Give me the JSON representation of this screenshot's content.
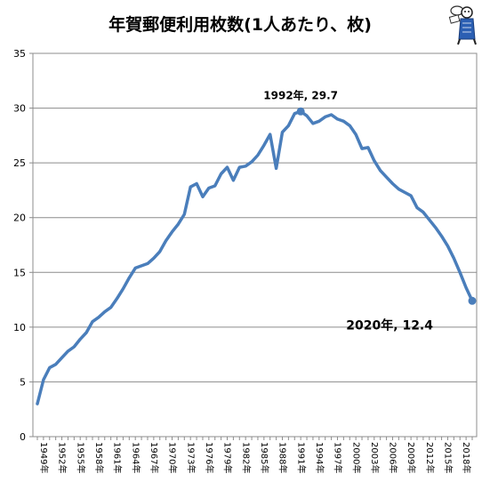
{
  "chart_data": {
    "type": "line",
    "title": "年賀郵便利用枚数(1人あたり、枚)",
    "xlabel": "",
    "ylabel": "",
    "ylim": [
      0,
      35
    ],
    "yticks": [
      0,
      5,
      10,
      15,
      20,
      25,
      30,
      35
    ],
    "grid": true,
    "legend": "none",
    "series_color": "#4a7ebb",
    "x_tick_labels": [
      "1949年",
      "1952年",
      "1955年",
      "1958年",
      "1961年",
      "1964年",
      "1967年",
      "1970年",
      "1973年",
      "1976年",
      "1979年",
      "1982年",
      "1985年",
      "1988年",
      "1991年",
      "1994年",
      "1997年",
      "2000年",
      "2003年",
      "2006年",
      "2009年",
      "2012年",
      "2015年",
      "2018年"
    ],
    "x": [
      1949,
      1950,
      1951,
      1952,
      1953,
      1954,
      1955,
      1956,
      1957,
      1958,
      1959,
      1960,
      1961,
      1962,
      1963,
      1964,
      1965,
      1966,
      1967,
      1968,
      1969,
      1970,
      1971,
      1972,
      1973,
      1974,
      1975,
      1976,
      1977,
      1978,
      1979,
      1980,
      1981,
      1982,
      1983,
      1984,
      1985,
      1986,
      1987,
      1988,
      1989,
      1990,
      1991,
      1992,
      1993,
      1994,
      1995,
      1996,
      1997,
      1998,
      1999,
      2000,
      2001,
      2002,
      2003,
      2004,
      2005,
      2006,
      2007,
      2008,
      2009,
      2010,
      2011,
      2012,
      2013,
      2014,
      2015,
      2016,
      2017,
      2018,
      2019,
      2020
    ],
    "values": [
      3.0,
      5.2,
      6.3,
      6.6,
      7.2,
      7.8,
      8.2,
      8.9,
      9.5,
      10.5,
      10.9,
      11.4,
      11.8,
      12.6,
      13.5,
      14.5,
      15.4,
      15.6,
      15.8,
      16.3,
      16.9,
      17.9,
      18.7,
      19.4,
      20.3,
      22.8,
      23.1,
      21.9,
      22.7,
      22.9,
      24.0,
      24.6,
      23.4,
      24.6,
      24.7,
      25.1,
      25.7,
      26.6,
      27.6,
      24.5,
      27.8,
      28.4,
      29.5,
      29.7,
      29.3,
      28.6,
      28.8,
      29.2,
      29.4,
      29.0,
      28.8,
      28.4,
      27.6,
      26.3,
      26.4,
      25.2,
      24.3,
      23.7,
      23.1,
      22.6,
      22.3,
      22.0,
      20.9,
      20.5,
      19.8,
      19.1,
      18.3,
      17.4,
      16.3,
      15.0,
      13.6,
      12.4
    ],
    "annotations": [
      {
        "text": "1992年, 29.7",
        "x": 1992,
        "y": 29.7
      },
      {
        "text": "2020年, 12.4",
        "x": 2020,
        "y": 12.4
      }
    ]
  }
}
